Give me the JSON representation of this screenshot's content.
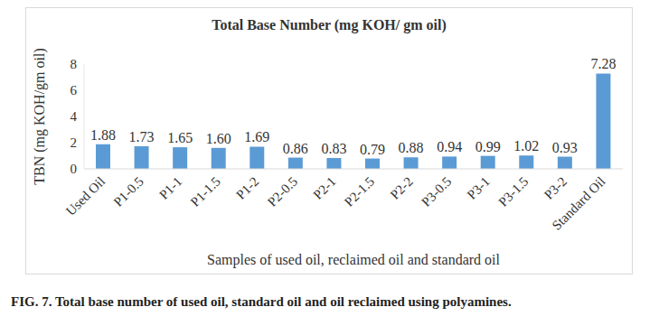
{
  "chart_data": {
    "type": "bar",
    "title": "Total Base Number (mg KOH/ gm oil)",
    "x_label": "Samples of used oil, reclaimed oil and standard oil",
    "y_label": "TBN (mg KOH/gm oil)",
    "caption": "FIG. 7. Total base number of used oil, standard oil and oil reclaimed using polyamines.",
    "categories": [
      "Used Oil",
      "P1-0.5",
      "P1-1",
      "P1-1.5",
      "P1-2",
      "P2-0.5",
      "P2-1",
      "P2-1.5",
      "P2-2",
      "P3-0.5",
      "P3-1",
      "P3-1.5",
      "P3-2",
      "Standard Oil"
    ],
    "values": [
      1.88,
      1.73,
      1.65,
      1.6,
      1.69,
      0.86,
      0.83,
      0.79,
      0.88,
      0.94,
      0.99,
      1.02,
      0.93,
      7.28
    ],
    "value_labels": [
      "1.88",
      "1.73",
      "1.65",
      "1.60",
      "1.69",
      "0.86",
      "0.83",
      "0.79",
      "0.88",
      "0.94",
      "0.99",
      "1.02",
      "0.93",
      "7.28"
    ],
    "color": "#5b9bd5",
    "ylim": [
      0,
      8
    ],
    "yticks": [
      0,
      2,
      4,
      6,
      8
    ],
    "grid": false,
    "data_labels": true
  }
}
